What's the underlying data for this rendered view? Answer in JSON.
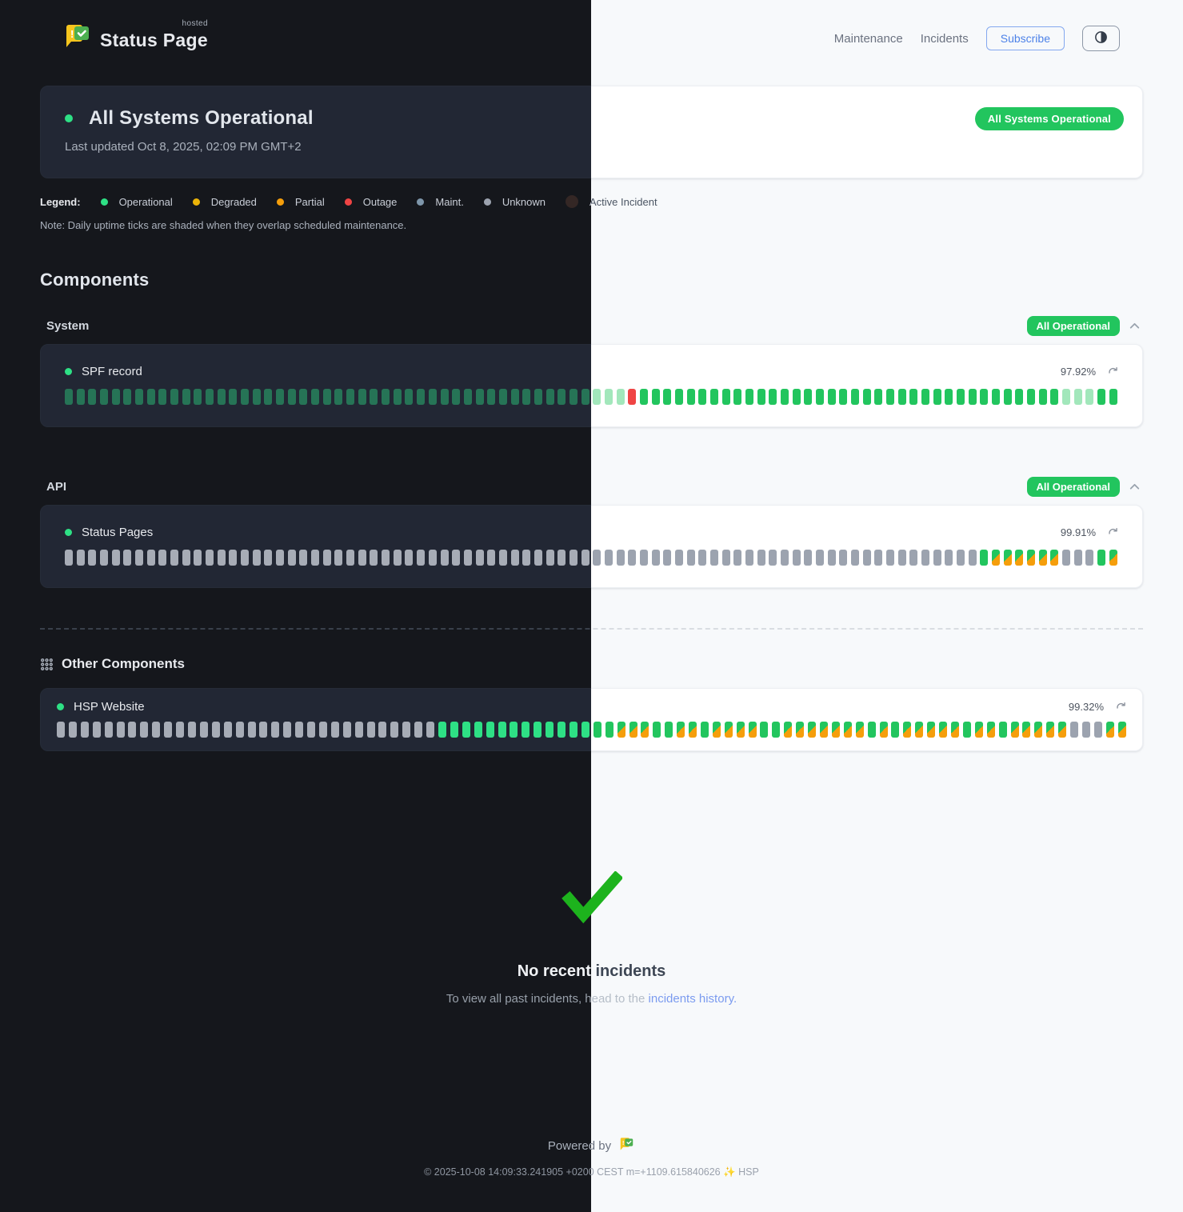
{
  "brand": {
    "name": "Status Page",
    "superscript": "hosted"
  },
  "nav": {
    "links": [
      "Maintenance",
      "Incidents"
    ],
    "subscribe_label": "Subscribe",
    "theme_toggle_icon": "contrast-half-circle-icon"
  },
  "banner": {
    "title": "All Systems Operational",
    "last_updated": "Last updated Oct 8, 2025, 02:09 PM GMT+2",
    "badge": "All Systems Operational"
  },
  "legend": {
    "label": "Legend:",
    "items": [
      {
        "label": "Operational",
        "color": "#22c55e"
      },
      {
        "label": "Degraded",
        "color": "#eab308"
      },
      {
        "label": "Partial",
        "color": "#f59e0b"
      },
      {
        "label": "Outage",
        "color": "#ef4444"
      },
      {
        "label": "Maint.",
        "color": "#7e96aa"
      },
      {
        "label": "Unknown",
        "color": "#9ca3af"
      },
      {
        "label": "Active Incident",
        "color": "#342725"
      }
    ],
    "note": "Note: Daily uptime ticks are shaded when they overlap scheduled maintenance."
  },
  "components": {
    "heading": "Components",
    "tick_status_legend": {
      "o": "operational",
      "m": "operational-maintenance-shaded",
      "r": "outage",
      "u": "unknown",
      "x": "operational-partial-mixed"
    },
    "groups": [
      {
        "name": "System",
        "badge": "All Operational",
        "items": [
          {
            "name": "SPF record",
            "uptime": "97.92%",
            "ticks": "mmmmmmmmmmmmmmmmmmmmmmmmmmmmmmmmmmmmmmmmmmmmmmmmroooooooooooooooooooooooooooooooooooommmoo"
          }
        ]
      },
      {
        "name": "API",
        "badge": "All Operational",
        "items": [
          {
            "name": "Status Pages",
            "uptime": "99.91%",
            "ticks": "uuuuuuuuuuuuuuuuuuuuuuuuuuuuuuuuuuuuuuuuuuuuuuuuuuuuuuuuuuuuuuuuuuuuuuuuuuuuuuoxxxxxxuuuox"
          }
        ]
      }
    ],
    "other": {
      "name": "Other Components",
      "items": [
        {
          "name": "HSP Website",
          "uptime": "99.32%",
          "ticks": "uuuuuuuuuuuuuuuuuuuuuuuuuuuuuuuuoooooooooooooooxxxooxxoxxxxooxxxxxxxoxoxxxxxoxxoxxxxxuuuxx"
        }
      ]
    }
  },
  "incidents": {
    "title": "No recent incidents",
    "subtext_prefix": "To view all past incidents, head to the ",
    "link_text": "incidents history",
    "subtext_suffix": "."
  },
  "footer": {
    "powered_by": "Powered by",
    "copyright": "© 2025-10-08 14:09:33.241905 +0200 CEST m=+1109.615840626 ✨ HSP"
  },
  "colors": {
    "operational_green_light": "#22c55e",
    "operational_green_dark": "#2ee085",
    "outage_red": "#ef4444",
    "partial_orange": "#f59e0b",
    "degraded_yellow": "#eab308",
    "maintenance_blue": "#7e96aa",
    "unknown_gray": "#9ca3af",
    "subscribe_blue": "#4d82e8",
    "link_blue": "#7b9bef",
    "check_green": "#1db31d"
  }
}
